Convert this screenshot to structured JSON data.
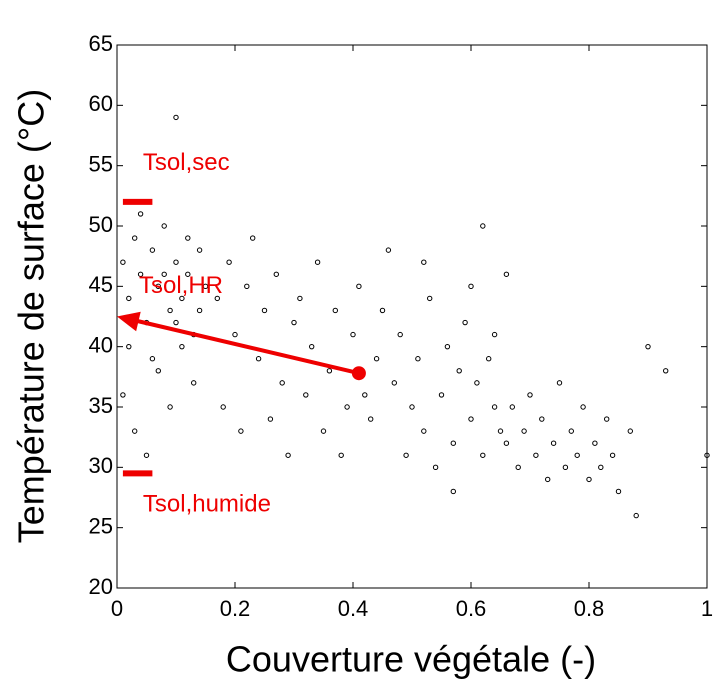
{
  "chart_data": {
    "type": "scatter",
    "xlabel": "Couverture végétale (-)",
    "ylabel": "Température de surface (°C)",
    "xlim": [
      0,
      1
    ],
    "ylim": [
      20,
      65
    ],
    "xticks": [
      0,
      0.2,
      0.4,
      0.6,
      0.8,
      1
    ],
    "yticks": [
      20,
      25,
      30,
      35,
      40,
      45,
      50,
      55,
      60,
      65
    ],
    "color": "#000000",
    "x": [
      0.01,
      0.02,
      0.03,
      0.04,
      0.05,
      0.06,
      0.07,
      0.08,
      0.09,
      0.1,
      0.11,
      0.12,
      0.13,
      0.14,
      0.15,
      0.02,
      0.04,
      0.06,
      0.08,
      0.1,
      0.12,
      0.01,
      0.03,
      0.05,
      0.07,
      0.09,
      0.11,
      0.13,
      0.14,
      0.1,
      0.17,
      0.19,
      0.2,
      0.22,
      0.24,
      0.25,
      0.27,
      0.28,
      0.3,
      0.31,
      0.33,
      0.34,
      0.36,
      0.37,
      0.39,
      0.4,
      0.41,
      0.42,
      0.44,
      0.45,
      0.18,
      0.21,
      0.26,
      0.29,
      0.32,
      0.35,
      0.38,
      0.43,
      0.23,
      0.46,
      0.47,
      0.48,
      0.5,
      0.51,
      0.52,
      0.53,
      0.55,
      0.56,
      0.57,
      0.58,
      0.59,
      0.6,
      0.61,
      0.62,
      0.63,
      0.64,
      0.49,
      0.54,
      0.6,
      0.62,
      0.66,
      0.65,
      0.57,
      0.52,
      0.64,
      0.66,
      0.67,
      0.68,
      0.69,
      0.7,
      0.71,
      0.72,
      0.73,
      0.74,
      0.75,
      0.76,
      0.77,
      0.78,
      0.79,
      0.8,
      0.81,
      0.82,
      0.83,
      0.84,
      0.85,
      0.87,
      0.9,
      0.93,
      0.88,
      1.0
    ],
    "y": [
      47,
      44,
      49,
      46,
      42,
      48,
      45,
      50,
      43,
      47,
      44,
      46,
      41,
      48,
      45,
      40,
      51,
      39,
      46,
      42,
      49,
      36,
      33,
      31,
      38,
      35,
      40,
      37,
      43,
      59,
      44,
      47,
      41,
      45,
      39,
      43,
      46,
      37,
      42,
      44,
      40,
      47,
      38,
      43,
      35,
      41,
      45,
      36,
      39,
      43,
      35,
      33,
      34,
      31,
      36,
      33,
      31,
      34,
      49,
      48,
      37,
      41,
      35,
      39,
      33,
      44,
      36,
      40,
      32,
      38,
      42,
      34,
      37,
      31,
      39,
      35,
      31,
      30,
      45,
      50,
      46,
      33,
      28,
      47,
      41,
      32,
      35,
      30,
      33,
      36,
      31,
      34,
      29,
      32,
      37,
      30,
      33,
      31,
      35,
      29,
      32,
      30,
      34,
      31,
      28,
      33,
      40,
      38,
      26,
      31
    ],
    "markers": [
      {
        "label": "Tsol,sec",
        "y": 52,
        "x": [
          0.01,
          0.06
        ]
      },
      {
        "label": "Tsol,humide",
        "y": 29.5,
        "x": [
          0.01,
          0.06
        ]
      }
    ],
    "arrow": {
      "label": "Tsol,HR",
      "from": [
        0.41,
        37.8
      ],
      "to": [
        0,
        42.5
      ]
    }
  }
}
